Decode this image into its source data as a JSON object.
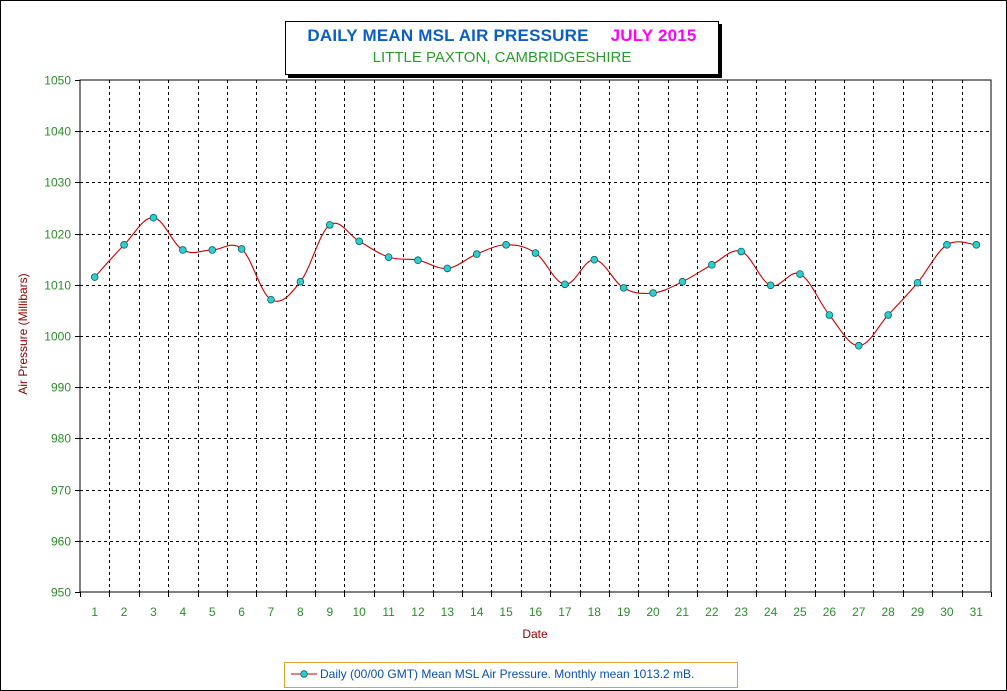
{
  "chart_data": {
    "type": "line",
    "title": "DAILY MEAN MSL AIR PRESSURE",
    "month_label": "JULY 2015",
    "subtitle": "LITTLE PAXTON, CAMBRIDGESHIRE",
    "xlabel": "Date",
    "ylabel": "Air Pressure (Millibars)",
    "ylim": [
      950,
      1050
    ],
    "ytick_step": 10,
    "grid": true,
    "categories": [
      "1",
      "2",
      "3",
      "4",
      "5",
      "6",
      "7",
      "8",
      "9",
      "10",
      "11",
      "12",
      "13",
      "14",
      "15",
      "16",
      "17",
      "18",
      "19",
      "20",
      "21",
      "22",
      "23",
      "24",
      "25",
      "26",
      "27",
      "28",
      "29",
      "30",
      "31"
    ],
    "series": [
      {
        "name": "Daily (00/00 GMT) Mean MSL Air Pressure. Monthly mean 1013.2 mB.",
        "values": [
          1011.5,
          1017.8,
          1023.1,
          1016.8,
          1016.8,
          1017.0,
          1007.1,
          1010.6,
          1021.7,
          1018.5,
          1015.4,
          1014.8,
          1013.2,
          1016.0,
          1017.8,
          1016.2,
          1010.1,
          1014.9,
          1009.4,
          1008.4,
          1010.6,
          1013.9,
          1016.5,
          1009.9,
          1012.1,
          1004.1,
          998.1,
          1004.1,
          1010.4,
          1017.8,
          1017.8
        ]
      }
    ],
    "legend_position": "bottom",
    "colors": {
      "line": "#cc0000",
      "marker": "#33cccc",
      "marker_edge": "#006666",
      "title": "#0b5fc4",
      "month": "#ff00ff",
      "subtitle": "#2e9a2e",
      "ticks": "#2e8b2e",
      "axis_label": "#8b0000"
    }
  }
}
